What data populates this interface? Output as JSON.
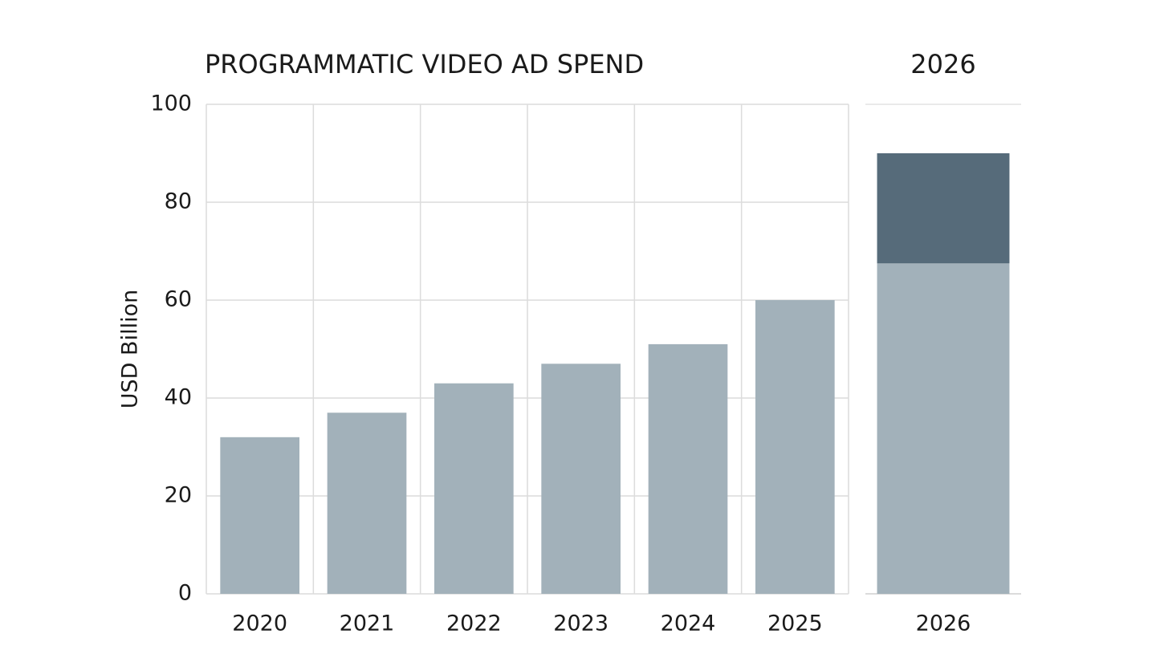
{
  "chart_data": [
    {
      "type": "bar",
      "title": "PROGRAMMATIC VIDEO AD SPEND",
      "y_label": "USD Billion",
      "categories": [
        "2020",
        "2021",
        "2022",
        "2023",
        "2024",
        "2025"
      ],
      "values": [
        32,
        37,
        43,
        47,
        51,
        60
      ],
      "color": "#a2b1ba",
      "ylim": [
        0,
        100
      ],
      "yticks": [
        0,
        20,
        40,
        60,
        80,
        100
      ],
      "grid": true
    },
    {
      "type": "stacked_bar",
      "title": "2026",
      "categories": [
        "2026"
      ],
      "series": [
        {
          "color": "#a2b1ba",
          "values": [
            67.5
          ]
        },
        {
          "color": "#566b7a",
          "values": [
            22.5
          ]
        }
      ],
      "ylim": [
        0,
        100
      ]
    }
  ]
}
